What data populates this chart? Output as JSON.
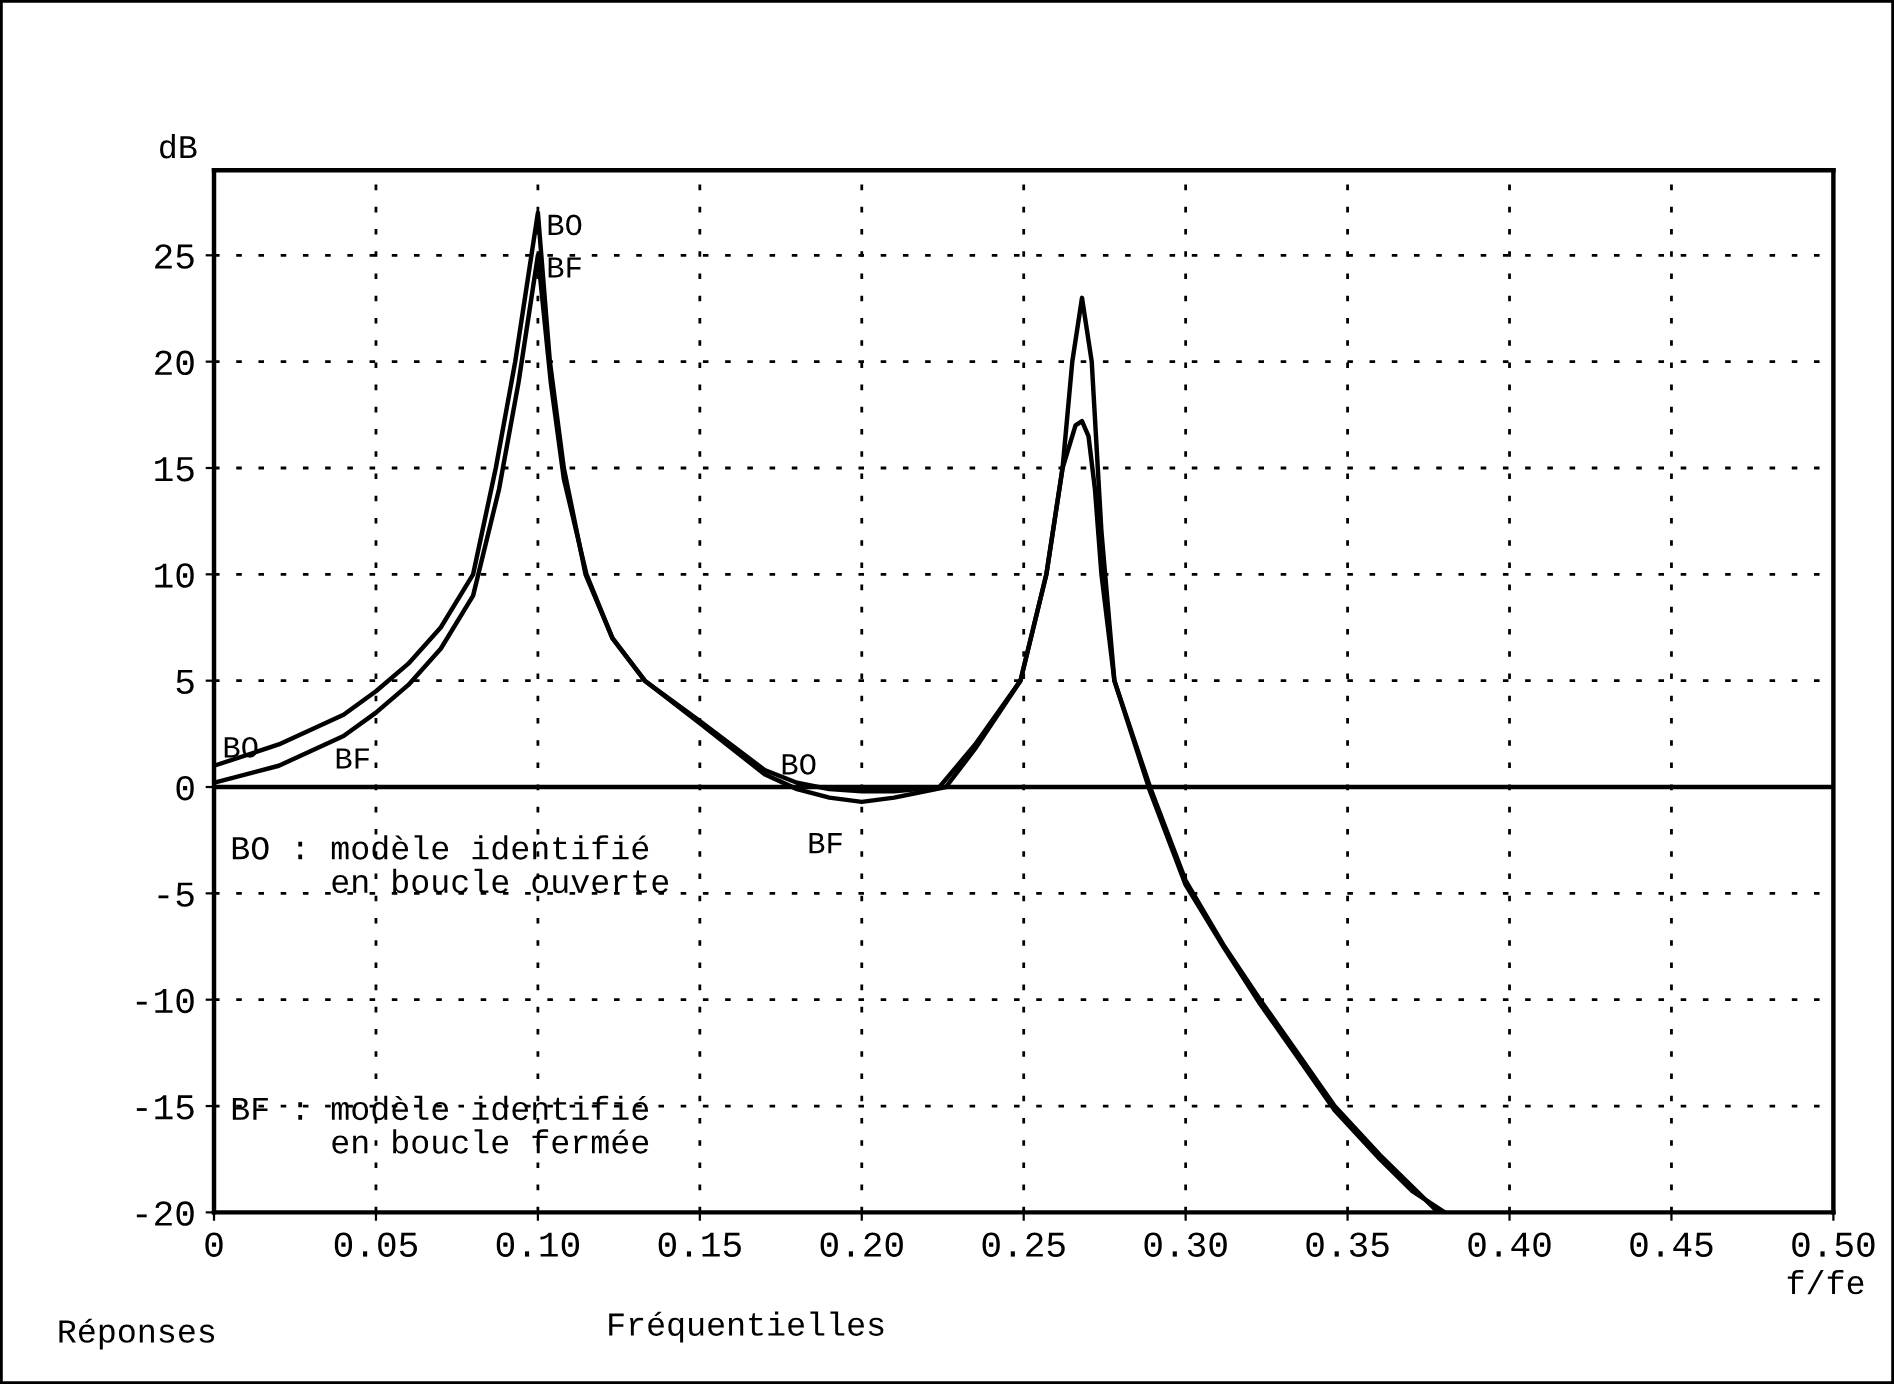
{
  "chart_data": {
    "type": "line",
    "xlabel": "f/fe",
    "ylabel": "dB",
    "xlim": [
      0,
      0.5
    ],
    "ylim": [
      -20,
      29
    ],
    "xticks": [
      0,
      0.05,
      {
        "value": 0.1,
        "label": "0.10"
      },
      0.15,
      {
        "value": 0.2,
        "label": "0.20"
      },
      0.25,
      {
        "value": 0.3,
        "label": "0.30"
      },
      0.35,
      {
        "value": 0.4,
        "label": "0.40"
      },
      0.45,
      {
        "value": 0.5,
        "label": "0.50"
      }
    ],
    "yticks": [
      -20,
      -15,
      -10,
      -5,
      0,
      5,
      10,
      15,
      20,
      25
    ],
    "grid": true,
    "line_style": "solid",
    "marker": "none",
    "legend": false,
    "ref_lines": [
      {
        "axis": "y",
        "value": 0,
        "color": "#000000"
      }
    ],
    "series": [
      {
        "name": "BO",
        "color": "#000000",
        "x": [
          0,
          0.02,
          0.04,
          0.05,
          0.06,
          0.07,
          0.08,
          0.087,
          0.093,
          0.097,
          0.1,
          0.1037,
          0.108,
          0.1147,
          0.123,
          0.133,
          0.15,
          0.17,
          0.18,
          0.19,
          0.2,
          0.21,
          0.224,
          0.235,
          0.249,
          0.257,
          0.262,
          0.266,
          0.268,
          0.27,
          0.272,
          0.274,
          0.278,
          0.289,
          0.3,
          0.312,
          0.323,
          0.335,
          0.346,
          0.36,
          0.37,
          0.378
        ],
        "values": [
          1.0,
          2.0,
          3.4,
          4.5,
          5.8,
          7.5,
          10,
          15,
          20,
          24,
          27,
          20,
          15,
          10,
          7,
          5,
          3.1,
          0.8,
          0.2,
          -0.1,
          -0.2,
          -0.2,
          0,
          2,
          5,
          10,
          15,
          17,
          17.2,
          16.5,
          14,
          10,
          5,
          0,
          -4.4,
          -7.5,
          -10,
          -12.6,
          -15,
          -17.3,
          -18.8,
          -20
        ]
      },
      {
        "name": "BF",
        "color": "#000000",
        "x": [
          0,
          0.02,
          0.04,
          0.05,
          0.06,
          0.07,
          0.08,
          0.088,
          0.094,
          0.098,
          0.1,
          0.104,
          0.108,
          0.115,
          0.123,
          0.133,
          0.15,
          0.17,
          0.18,
          0.19,
          0.2,
          0.21,
          0.226,
          0.235,
          0.249,
          0.257,
          0.262,
          0.265,
          0.268,
          0.271,
          0.274,
          0.278,
          0.289,
          0.3,
          0.312,
          0.323,
          0.335,
          0.346,
          0.36,
          0.37,
          0.38
        ],
        "values": [
          0.2,
          1.0,
          2.4,
          3.5,
          4.8,
          6.5,
          9,
          14,
          19,
          23,
          25,
          19,
          14.5,
          10,
          7,
          5,
          3.0,
          0.6,
          -0.1,
          -0.5,
          -0.7,
          -0.5,
          0,
          1.8,
          5,
          10,
          15,
          20,
          23,
          20,
          12,
          5,
          -0.2,
          -4.6,
          -7.6,
          -10.2,
          -12.8,
          -15.2,
          -17.5,
          -19,
          -20
        ]
      }
    ],
    "annotations": [
      {
        "text": "BO",
        "x": 0,
        "y": 1.0
      },
      {
        "text": "BF",
        "x": 0.02,
        "y": 1.0
      },
      {
        "text": "BO",
        "x": 0.18,
        "y": 0.2
      },
      {
        "text": "BF",
        "x": 0.19,
        "y": -0.5
      },
      "BO : modèle identifié\n     en boucle ouverte",
      "BF : modèle identifié\n     en boucle fermée",
      "Réponses",
      "Fréquentielles"
    ]
  }
}
